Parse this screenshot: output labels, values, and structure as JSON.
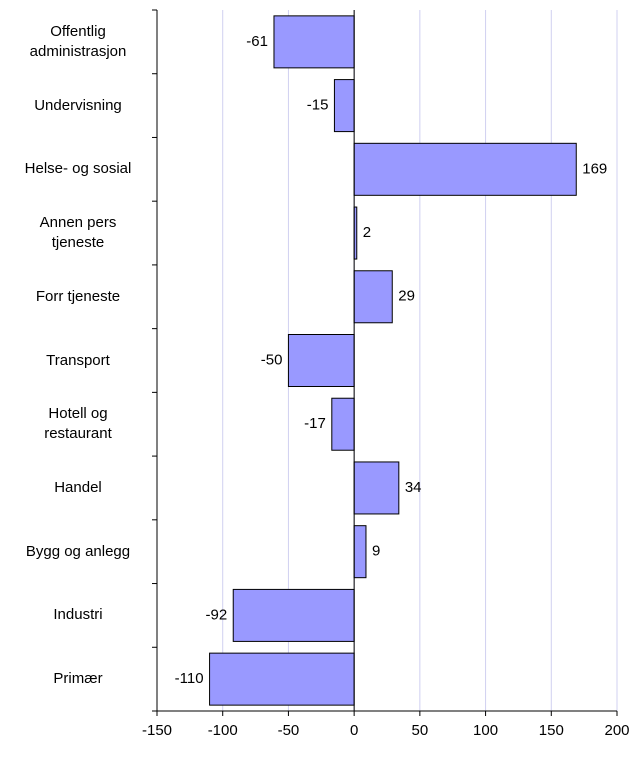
{
  "chart_data": {
    "type": "barh",
    "categories": [
      "Offentlig\nadministrasjon",
      "Undervisning",
      "Helse- og sosial",
      "Annen pers\ntjeneste",
      "Forr tjeneste",
      "Transport",
      "Hotell og\nrestaurant",
      "Handel",
      "Bygg og anlegg",
      "Industri",
      "Primær"
    ],
    "values": [
      -61,
      -15,
      169,
      2,
      29,
      -50,
      -17,
      34,
      9,
      -92,
      -110
    ],
    "color": "#9999ff",
    "xlim": [
      -150,
      200
    ],
    "xticks": [
      -150,
      -100,
      -50,
      0,
      50,
      100,
      150,
      200
    ],
    "grid": true
  }
}
